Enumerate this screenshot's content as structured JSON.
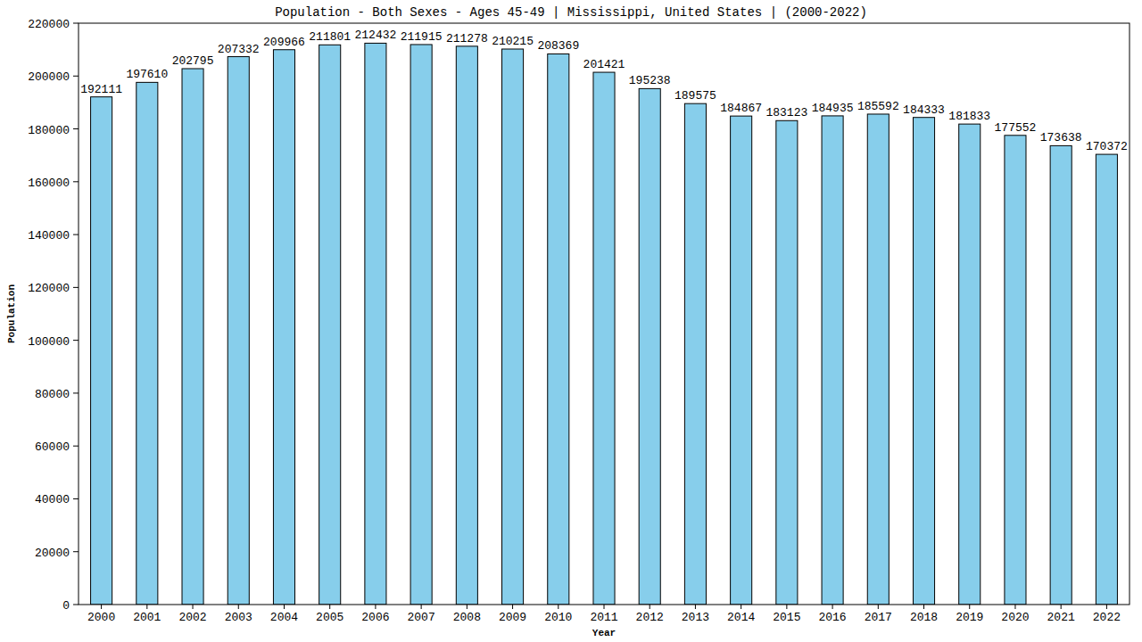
{
  "chart_data": {
    "type": "bar",
    "title": "Population - Both Sexes - Ages 45-49 | Mississippi, United States |  (2000-2022)",
    "x_label": "Year",
    "y_label": "Population",
    "categories": [
      "2000",
      "2001",
      "2002",
      "2003",
      "2004",
      "2005",
      "2006",
      "2007",
      "2008",
      "2009",
      "2010",
      "2011",
      "2012",
      "2013",
      "2014",
      "2015",
      "2016",
      "2017",
      "2018",
      "2019",
      "2020",
      "2021",
      "2022"
    ],
    "values": [
      192111,
      197610,
      202795,
      207332,
      209966,
      211801,
      212432,
      211915,
      211278,
      210215,
      208369,
      201421,
      195238,
      189575,
      184867,
      183123,
      184935,
      185592,
      184333,
      181833,
      177552,
      173638,
      170372
    ],
    "color": "#87ceeb",
    "ylim": [
      0,
      220000
    ],
    "yticks": [
      0,
      20000,
      40000,
      60000,
      80000,
      100000,
      120000,
      140000,
      160000,
      180000,
      200000,
      220000
    ],
    "grid": false,
    "data_labels": true
  }
}
